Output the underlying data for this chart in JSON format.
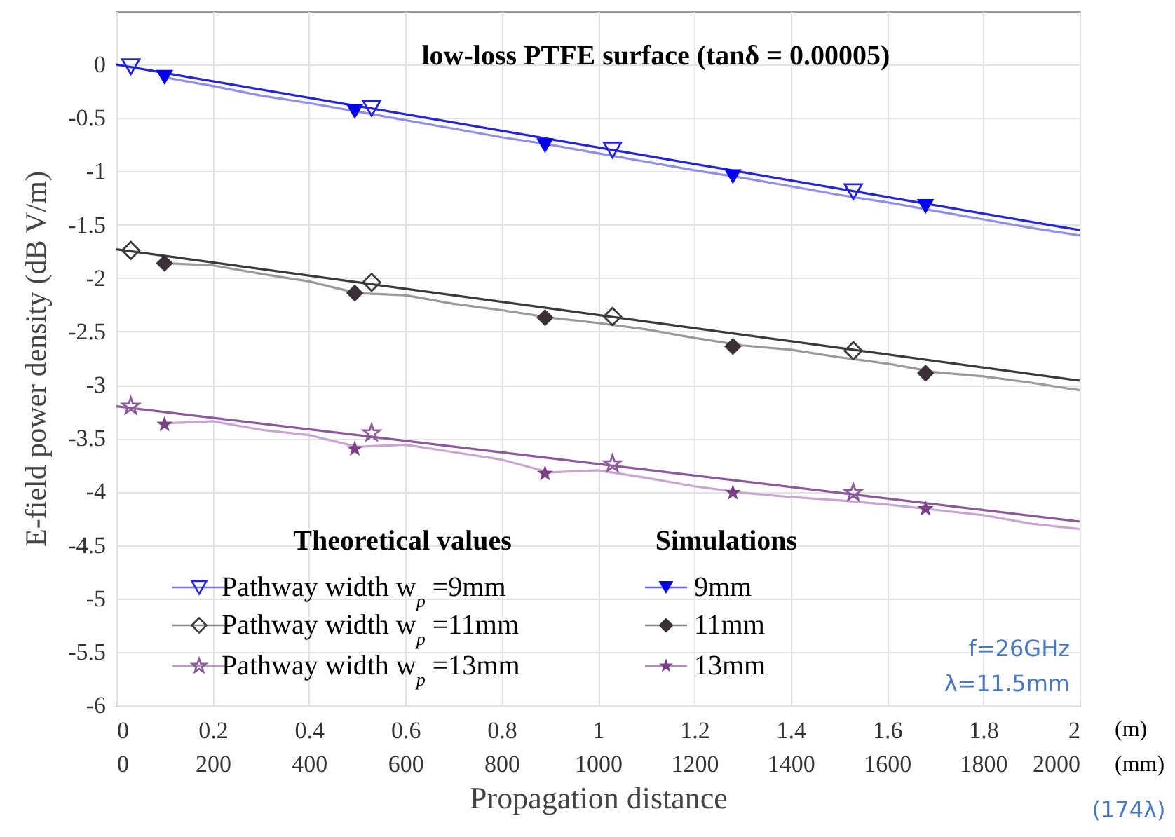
{
  "chart_data": {
    "type": "scatter",
    "title": "low-loss PTFE surface (tanδ = 0.00005)",
    "xlabel": "Propagation distance",
    "ylabel": "E-field power density (dB V/m)",
    "xlim": [
      0,
      2
    ],
    "xticks": [
      0,
      0.2,
      0.4,
      0.6,
      0.8,
      1,
      1.2,
      1.4,
      1.6,
      1.8,
      2
    ],
    "x2lim": [
      0,
      2000
    ],
    "x2ticks": [
      0,
      200,
      400,
      600,
      800,
      1000,
      1200,
      1400,
      1600,
      1800,
      2000
    ],
    "ylim": [
      -6,
      0.5
    ],
    "yticks": [
      0,
      -0.5,
      -1,
      -1.5,
      -2,
      -2.5,
      -3,
      -3.5,
      -4,
      -4.5,
      -5,
      -5.5,
      -6
    ],
    "grid": true,
    "legend": "bottom left",
    "annotations": [
      "Theoretical values",
      "Simulations",
      "f=26GHz",
      "λ=11.5mm",
      "(m)",
      "(mm)",
      "(174λ)"
    ],
    "series": [
      {
        "type": "line",
        "color": "#2424d8",
        "x": [
          0,
          2
        ],
        "values": [
          0,
          -1.55
        ]
      },
      {
        "type": "line",
        "color": "#3a3a3a",
        "x": [
          0,
          2
        ],
        "values": [
          -1.73,
          -2.96
        ]
      },
      {
        "type": "line",
        "color": "#8c5a9a",
        "x": [
          0,
          2
        ],
        "values": [
          -3.2,
          -4.28
        ]
      },
      {
        "type": "line",
        "color": "#8f8fe6",
        "x": [
          0.1,
          0.2,
          0.3,
          0.4,
          0.5,
          0.6,
          0.7,
          0.8,
          0.9,
          1.0,
          1.1,
          1.2,
          1.3,
          1.4,
          1.5,
          1.6,
          1.7,
          1.8,
          1.9,
          2.0
        ],
        "values": [
          -0.12,
          -0.2,
          -0.29,
          -0.36,
          -0.44,
          -0.52,
          -0.6,
          -0.68,
          -0.75,
          -0.83,
          -0.91,
          -0.99,
          -1.06,
          -1.14,
          -1.22,
          -1.29,
          -1.37,
          -1.45,
          -1.53,
          -1.6
        ]
      },
      {
        "type": "line",
        "color": "#9a9a9a",
        "x": [
          0.1,
          0.2,
          0.3,
          0.4,
          0.5,
          0.6,
          0.7,
          0.8,
          0.9,
          1.0,
          1.1,
          1.2,
          1.3,
          1.4,
          1.5,
          1.6,
          1.7,
          1.8,
          1.9,
          2.0
        ],
        "values": [
          -1.86,
          -1.88,
          -1.96,
          -2.03,
          -2.14,
          -2.16,
          -2.24,
          -2.3,
          -2.37,
          -2.42,
          -2.48,
          -2.56,
          -2.63,
          -2.67,
          -2.74,
          -2.8,
          -2.88,
          -2.92,
          -2.98,
          -3.05
        ]
      },
      {
        "type": "line",
        "color": "#c8a6d0",
        "x": [
          0.1,
          0.2,
          0.3,
          0.4,
          0.5,
          0.6,
          0.7,
          0.8,
          0.9,
          1.0,
          1.1,
          1.2,
          1.3,
          1.4,
          1.5,
          1.6,
          1.7,
          1.8,
          1.9,
          2.0
        ],
        "values": [
          -3.36,
          -3.34,
          -3.42,
          -3.47,
          -3.58,
          -3.56,
          -3.63,
          -3.7,
          -3.82,
          -3.8,
          -3.87,
          -3.95,
          -4.01,
          -4.05,
          -4.08,
          -4.12,
          -4.17,
          -4.22,
          -4.3,
          -4.35
        ]
      },
      {
        "type": "scatter",
        "name": "Pathway width w$_{p}$ =9mm",
        "color": "#2424d8",
        "marker": "triangle",
        "x": [
          0.03,
          0.53,
          1.03,
          1.53
        ],
        "values": [
          -0.02,
          -0.41,
          -0.8,
          -1.19
        ]
      },
      {
        "type": "scatter",
        "name": "Pathway width w$_{p}$ =11mm",
        "color": "#3a3a3a",
        "marker": "diamond",
        "x": [
          0.03,
          0.53,
          1.03,
          1.53
        ],
        "values": [
          -1.74,
          -2.04,
          -2.36,
          -2.68
        ]
      },
      {
        "type": "scatter",
        "name": "Pathway width w$_{p}$ =13mm",
        "color": "#8c5a9a",
        "marker": "star",
        "x": [
          0.03,
          0.53,
          1.03,
          1.53
        ],
        "values": [
          -3.2,
          -3.45,
          -3.74,
          -4.01
        ]
      },
      {
        "type": "scatter",
        "name": "9mm",
        "color": "#0000ee",
        "marker": "triangle",
        "x": [
          0.1,
          0.495,
          0.89,
          1.28,
          1.68
        ],
        "values": [
          -0.12,
          -0.44,
          -0.76,
          -1.05,
          -1.33
        ]
      },
      {
        "type": "scatter",
        "name": "11mm",
        "color": "#3a3038",
        "marker": "diamond",
        "x": [
          0.1,
          0.495,
          0.89,
          1.28,
          1.68
        ],
        "values": [
          -1.86,
          -2.14,
          -2.37,
          -2.64,
          -2.89
        ]
      },
      {
        "type": "scatter",
        "name": "13mm",
        "color": "#7a3f86",
        "marker": "star",
        "x": [
          0.1,
          0.495,
          0.89,
          1.28,
          1.68
        ],
        "values": [
          -3.37,
          -3.6,
          -3.83,
          -4.01,
          -4.16
        ]
      }
    ]
  }
}
